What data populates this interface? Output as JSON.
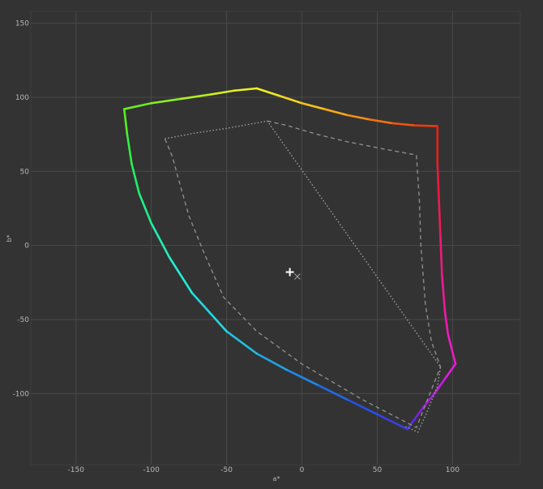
{
  "chart_data": {
    "type": "line",
    "xlabel": "a*",
    "ylabel": "b*",
    "xlim": [
      -180,
      145
    ],
    "ylim": [
      -148,
      158
    ],
    "xticks": [
      -150,
      -100,
      -50,
      0,
      50,
      100
    ],
    "yticks": [
      150,
      100,
      50,
      0,
      -50,
      -100
    ],
    "grid": true,
    "background": "#333333",
    "grid_color": "#4a4a4a",
    "series": [
      {
        "style": "solid-rainbow",
        "points": [
          [
            -118,
            92
          ],
          [
            -100,
            96
          ],
          [
            -80,
            99
          ],
          [
            -60,
            102
          ],
          [
            -45,
            104.5
          ],
          [
            -30,
            106
          ],
          [
            -15,
            101
          ],
          [
            0,
            96
          ],
          [
            15,
            92
          ],
          [
            30,
            88
          ],
          [
            45,
            85
          ],
          [
            60,
            82.5
          ],
          [
            75,
            81
          ],
          [
            90,
            80.5
          ],
          [
            90,
            55
          ],
          [
            91,
            30
          ],
          [
            92,
            5
          ],
          [
            93,
            -20
          ],
          [
            95,
            -45
          ],
          [
            97,
            -60
          ],
          [
            102,
            -80
          ],
          [
            95,
            -90
          ],
          [
            88,
            -100
          ],
          [
            80,
            -110
          ],
          [
            75,
            -117
          ],
          [
            70,
            -124
          ],
          [
            50,
            -114
          ],
          [
            30,
            -104
          ],
          [
            10,
            -94
          ],
          [
            -10,
            -84
          ],
          [
            -30,
            -73
          ],
          [
            -50,
            -58
          ],
          [
            -73,
            -32
          ],
          [
            -88,
            -8
          ],
          [
            -100,
            15
          ],
          [
            -108,
            35
          ],
          [
            -113,
            55
          ],
          [
            -116,
            75
          ],
          [
            -118,
            92
          ]
        ],
        "colors": [
          "#66ee22",
          "#88ee22",
          "#b3ee22",
          "#d4ee22",
          "#eeee22",
          "#eeee22",
          "#f5d520",
          "#f5bf1d",
          "#f5a818",
          "#f58f14",
          "#f57210",
          "#f2540c",
          "#ee3a10",
          "#e82218",
          "#ee1a3c",
          "#ee1a5c",
          "#ee1a7c",
          "#ee1a98",
          "#ee1ab2",
          "#ee1ac5",
          "#e51ae0",
          "#c81ae0",
          "#a81ae0",
          "#8220e0",
          "#5a2ee8",
          "#3a3ee8",
          "#2550e8",
          "#1f6ae8",
          "#1c88e8",
          "#1ea6e6",
          "#20c0e2",
          "#22d8e0",
          "#22eed2",
          "#22eeb0",
          "#22ee8a",
          "#22ee66",
          "#33ee44",
          "#55ee22"
        ]
      },
      {
        "style": "dashed",
        "color": "#8c8c8c",
        "points": [
          [
            -23,
            84
          ],
          [
            -10,
            81
          ],
          [
            10,
            75
          ],
          [
            30,
            70
          ],
          [
            50,
            66
          ],
          [
            60,
            64
          ],
          [
            76,
            61
          ],
          [
            78,
            30
          ],
          [
            79,
            0
          ],
          [
            82,
            -40
          ],
          [
            86,
            -65
          ],
          [
            92,
            -82
          ],
          [
            76,
            -123
          ],
          [
            40,
            -104
          ],
          [
            0,
            -80
          ],
          [
            -30,
            -58
          ],
          [
            -52,
            -35
          ],
          [
            -65,
            -5
          ],
          [
            -75,
            20
          ],
          [
            -82,
            45
          ],
          [
            -86,
            60
          ],
          [
            -91,
            72
          ]
        ]
      },
      {
        "style": "dotted",
        "color": "#a0a0a0",
        "points": [
          [
            -91,
            72
          ],
          [
            -70,
            76
          ],
          [
            -50,
            79
          ],
          [
            -23,
            84
          ],
          [
            92,
            -82
          ],
          [
            90,
            -95
          ],
          [
            86,
            -105
          ],
          [
            82,
            -115
          ],
          [
            77,
            -126
          ],
          [
            68,
            -122
          ]
        ]
      }
    ],
    "markers": [
      {
        "symbol": "plus",
        "x": -8,
        "y": -18,
        "color": "#ffffff"
      },
      {
        "symbol": "cross",
        "x": -3,
        "y": -21,
        "color": "#9a9a9a"
      }
    ]
  }
}
